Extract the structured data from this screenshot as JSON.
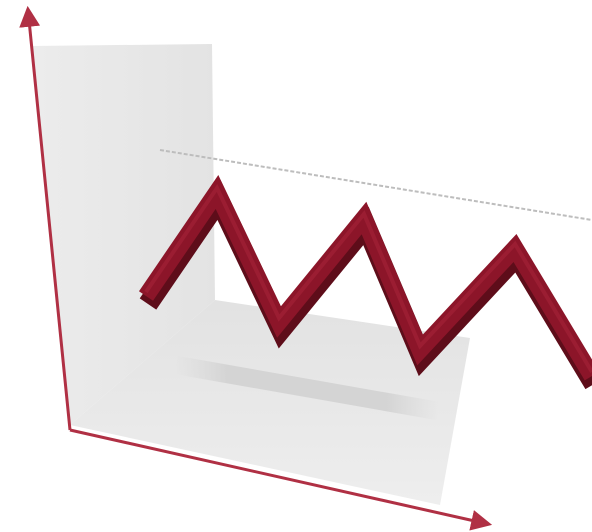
{
  "illustration": {
    "icon": "3d-line-chart-icon",
    "colors": {
      "axis": "#b03044",
      "line": "#8c1529",
      "line_highlight": "#a8243a",
      "line_shadow": "#5e0d1a",
      "back_wall": "#e6e6e6",
      "floor": "#e9e9e9",
      "floor_shadow": "#d6d6d6",
      "reference_line": "#bdbdbd"
    }
  }
}
